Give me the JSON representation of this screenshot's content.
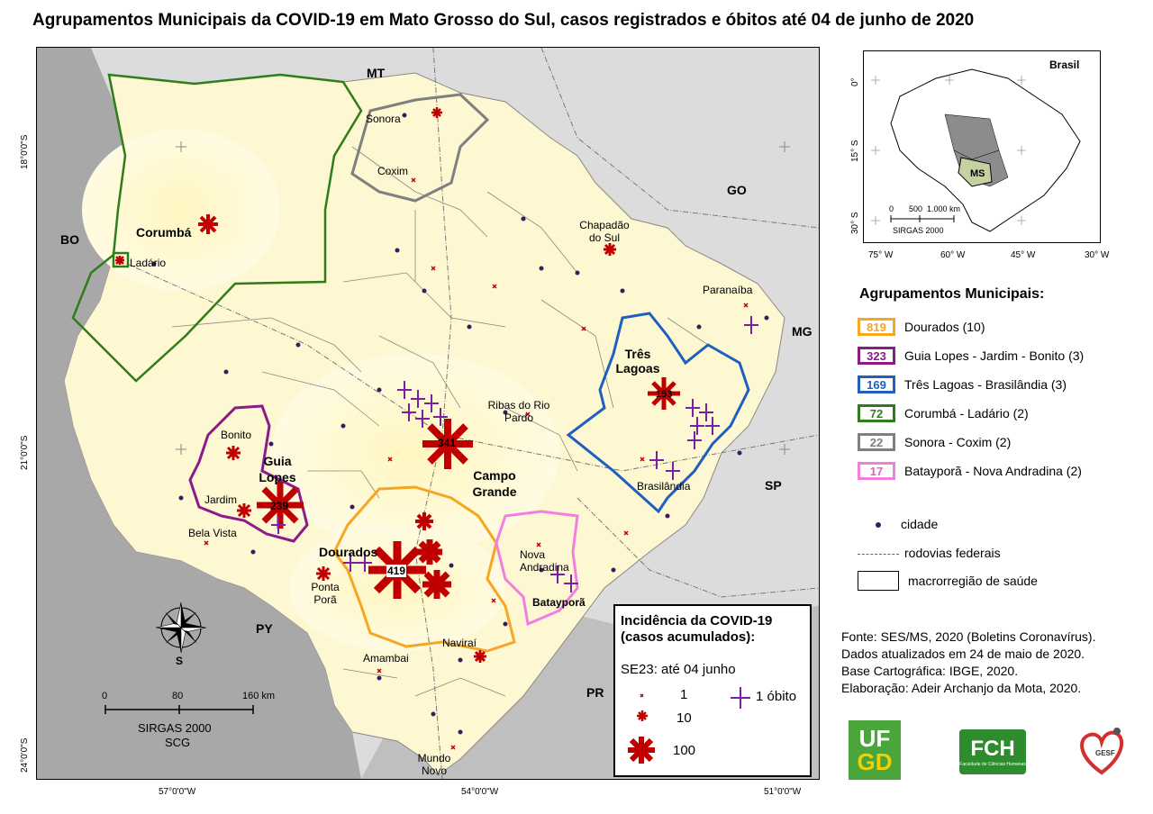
{
  "title": "Agrupamentos Municipais da COVID-19 em Mato Grosso do Sul, casos registrados e óbitos até 04 de junho de 2020",
  "map": {
    "countries": {
      "mt": "MT",
      "go": "GO",
      "mg": "MG",
      "sp": "SP",
      "pr": "PR",
      "py": "PY",
      "bo": "BO"
    },
    "cities": {
      "sonora": "Sonora",
      "coxim": "Coxim",
      "chapadao": "Chapadão do Sul",
      "corumba": "Corumbá",
      "ladario": "Ladário",
      "paranaiba": "Paranaíba",
      "tres_lagoas": "Três Lagoas",
      "ribas": "Ribas do Rio Pardo",
      "bonito": "Bonito",
      "guia_lopes": "Guia Lopes",
      "jardim": "Jardim",
      "campo_grande": "Campo Grande",
      "brasilandia": "Brasilândia",
      "bela_vista": "Bela Vista",
      "dourados": "Dourados",
      "nova_andradina": "Nova Andradina",
      "bataypora": "Batayporã",
      "ponta_pora": "Ponta Porã",
      "amambai": "Amambai",
      "navirai": "Naviraí",
      "mundo_novo": "Mundo Novo"
    },
    "cluster_counts": {
      "campo_grande": "341",
      "dourados": "419",
      "guia_lopes": "239",
      "tres_lagoas": "153"
    },
    "lat_labels": [
      "18°0'0\"S",
      "21°0'0\"S",
      "24°0'0\"S"
    ],
    "lon_labels": [
      "57°0'0\"W",
      "54°0'0\"W",
      "51°0'0\"W"
    ],
    "scale": {
      "ticks": [
        "0",
        "80",
        "160 km"
      ],
      "crs": "SIRGAS 2000",
      "crs2": "SCG"
    },
    "compass_south": "S"
  },
  "inset": {
    "country": "Brasil",
    "state": "MS",
    "lat_labels": [
      "0°",
      "15° S",
      "30° S"
    ],
    "lon_labels": [
      "75° W",
      "60° W",
      "45° W",
      "30° W"
    ],
    "scale_ticks": [
      "0",
      "500",
      "1.000 km"
    ],
    "crs": "SIRGAS 2000"
  },
  "legend": {
    "title": "Agrupamentos Municipais:",
    "items": [
      {
        "count": "819",
        "label": "Dourados (10)",
        "color": "#f5a623"
      },
      {
        "count": "323",
        "label": "Guia Lopes - Jardim - Bonito (3)",
        "color": "#8b1a8b"
      },
      {
        "count": "169",
        "label": "Três Lagoas - Brasilândia (3)",
        "color": "#1f5fbf"
      },
      {
        "count": "72",
        "label": "Corumbá - Ladário (2)",
        "color": "#2e7d1a"
      },
      {
        "count": "22",
        "label": "Sonora - Coxim (2)",
        "color": "#7f7f7f"
      },
      {
        "count": "17",
        "label": "Batayporã - Nova Andradina (2)",
        "color": "#f080e0"
      }
    ],
    "city": "cidade",
    "roads": "rodovias federais",
    "macro": "macrorregião de saúde"
  },
  "incidence": {
    "title1": "Incidência da COVID-19",
    "title2": "(casos acumulados):",
    "sub": "SE23: até 04 junho",
    "v1": "1",
    "v10": "10",
    "v100": "100",
    "death": "1 óbito"
  },
  "credits": [
    "Fonte: SES/MS, 2020 (Boletins Coronavírus).",
    "Dados atualizados em 24 de maio de 2020.",
    "Base Cartográfica: IBGE, 2020.",
    "Elaboração: Adeir Archanjo da Mota, 2020."
  ],
  "logos": {
    "ufgd_top": "UF",
    "ufgd_bottom": "GD",
    "fch": "FCH",
    "fch_sub": "Faculdade de Ciências Humanas",
    "gesf": "GESF"
  }
}
